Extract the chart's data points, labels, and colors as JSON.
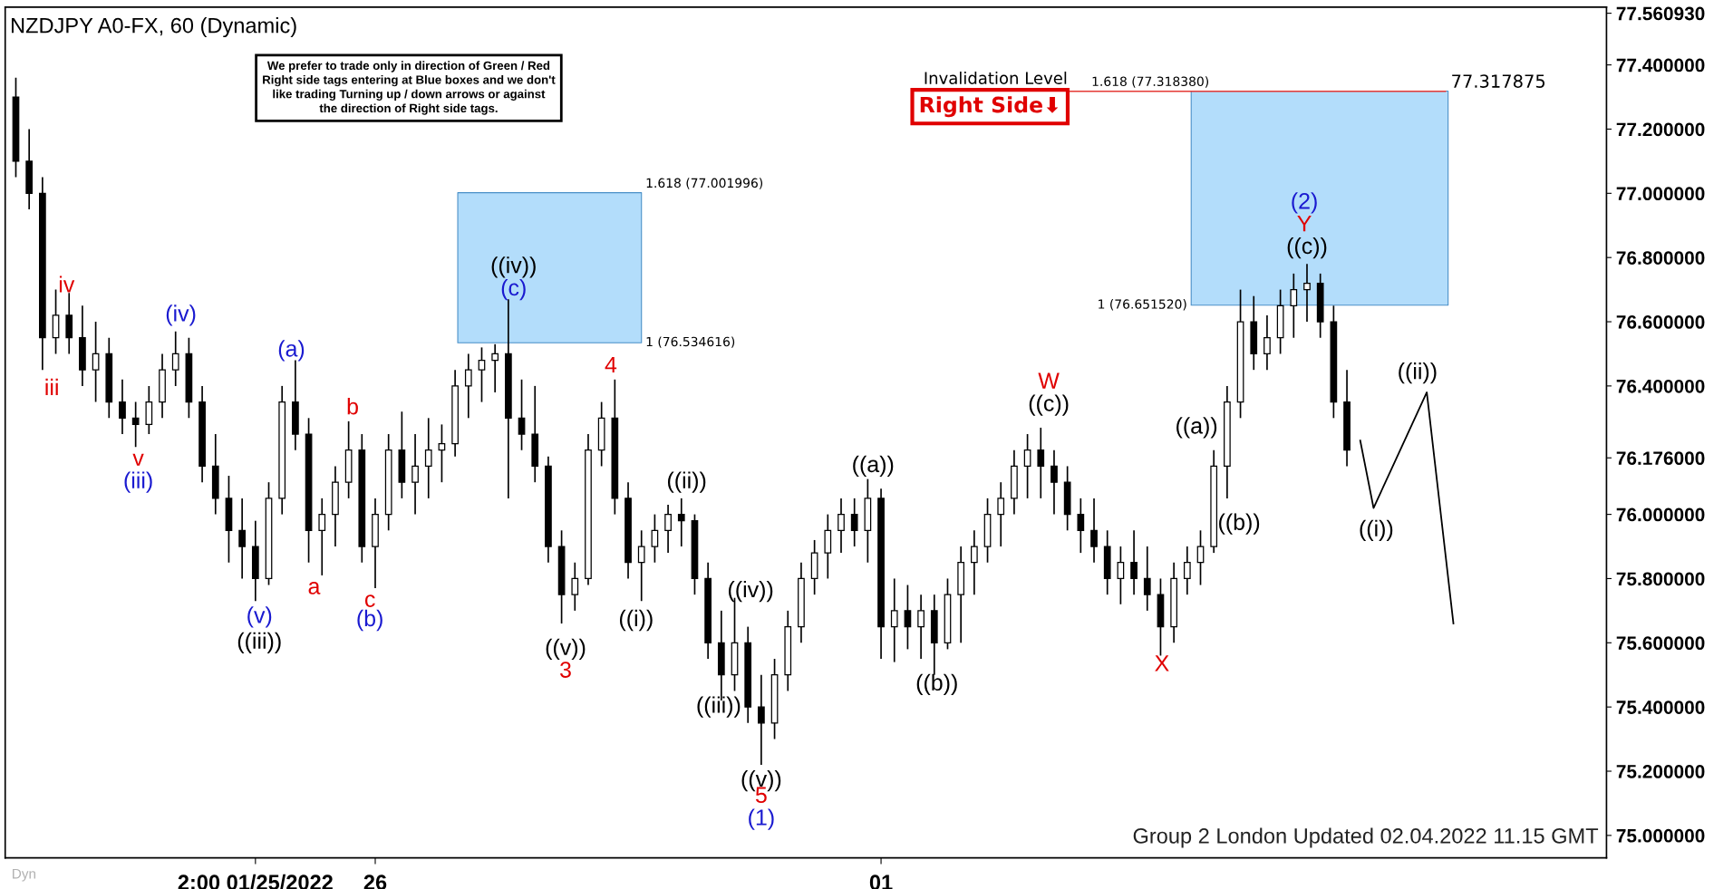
{
  "chart_data": {
    "type": "candlestick",
    "title": "NZDJPY A0-FX, 60 (Dynamic)",
    "color": "#000000",
    "categories": [
      null,
      null,
      null,
      null,
      null,
      null,
      null,
      null,
      null,
      null,
      null,
      null,
      null,
      null,
      null,
      null,
      null,
      null,
      "2:00 01/25/2022",
      null,
      null,
      null,
      null,
      null,
      null,
      null,
      null,
      "26",
      null,
      null,
      null,
      null,
      null,
      null,
      null,
      null,
      null,
      null,
      null,
      null,
      null,
      null,
      null,
      null,
      null,
      null,
      null,
      null,
      null,
      null,
      null,
      null,
      null,
      null,
      null,
      null,
      null,
      null,
      null,
      null,
      null,
      null,
      null,
      null,
      null,
      "01",
      null,
      null,
      null,
      null,
      null,
      null,
      null,
      null,
      null,
      null,
      null,
      null,
      null,
      null,
      null,
      null,
      null,
      null,
      null,
      null,
      null,
      null,
      null,
      null,
      null,
      null,
      null,
      null,
      null,
      null,
      null,
      null,
      null,
      null,
      null,
      null,
      null,
      null,
      null,
      null,
      null,
      null,
      null,
      null,
      null,
      null,
      null,
      null,
      null,
      null,
      null,
      null,
      null,
      null
    ],
    "ohlc": [
      [
        77.3,
        77.36,
        77.05,
        77.1
      ],
      [
        77.1,
        77.2,
        76.95,
        77.0
      ],
      [
        77.0,
        77.05,
        76.45,
        76.55
      ],
      [
        76.55,
        76.7,
        76.5,
        76.62
      ],
      [
        76.62,
        76.69,
        76.5,
        76.55
      ],
      [
        76.55,
        76.65,
        76.4,
        76.45
      ],
      [
        76.45,
        76.6,
        76.35,
        76.5
      ],
      [
        76.5,
        76.55,
        76.3,
        76.35
      ],
      [
        76.35,
        76.42,
        76.25,
        76.3
      ],
      [
        76.3,
        76.35,
        76.21,
        76.28
      ],
      [
        76.28,
        76.4,
        76.25,
        76.35
      ],
      [
        76.35,
        76.5,
        76.3,
        76.45
      ],
      [
        76.45,
        76.57,
        76.4,
        76.5
      ],
      [
        76.5,
        76.55,
        76.3,
        76.35
      ],
      [
        76.35,
        76.4,
        76.1,
        76.15
      ],
      [
        76.15,
        76.25,
        76.0,
        76.05
      ],
      [
        76.05,
        76.12,
        75.85,
        75.95
      ],
      [
        75.95,
        76.05,
        75.8,
        75.9
      ],
      [
        75.9,
        75.98,
        75.73,
        75.8
      ],
      [
        75.8,
        76.1,
        75.78,
        76.05
      ],
      [
        76.05,
        76.4,
        76.0,
        76.35
      ],
      [
        76.35,
        76.48,
        76.2,
        76.25
      ],
      [
        76.25,
        76.3,
        75.85,
        75.95
      ],
      [
        75.95,
        76.05,
        75.81,
        76.0
      ],
      [
        76.0,
        76.15,
        75.9,
        76.1
      ],
      [
        76.1,
        76.29,
        76.05,
        76.2
      ],
      [
        76.2,
        76.25,
        75.85,
        75.9
      ],
      [
        75.9,
        76.05,
        75.77,
        76.0
      ],
      [
        76.0,
        76.25,
        75.95,
        76.2
      ],
      [
        76.2,
        76.32,
        76.05,
        76.1
      ],
      [
        76.1,
        76.25,
        76.0,
        76.15
      ],
      [
        76.15,
        76.3,
        76.05,
        76.2
      ],
      [
        76.2,
        76.28,
        76.1,
        76.22
      ],
      [
        76.22,
        76.45,
        76.18,
        76.4
      ],
      [
        76.4,
        76.5,
        76.3,
        76.45
      ],
      [
        76.45,
        76.52,
        76.35,
        76.48
      ],
      [
        76.48,
        76.53,
        76.38,
        76.5
      ],
      [
        76.5,
        76.67,
        76.05,
        76.3
      ],
      [
        76.3,
        76.42,
        76.2,
        76.25
      ],
      [
        76.25,
        76.4,
        76.1,
        76.15
      ],
      [
        76.15,
        76.18,
        75.85,
        75.9
      ],
      [
        75.9,
        75.95,
        75.66,
        75.75
      ],
      [
        75.75,
        75.85,
        75.7,
        75.8
      ],
      [
        75.8,
        76.25,
        75.78,
        76.2
      ],
      [
        76.2,
        76.35,
        76.15,
        76.3
      ],
      [
        76.3,
        76.42,
        76.0,
        76.05
      ],
      [
        76.05,
        76.1,
        75.8,
        75.85
      ],
      [
        75.85,
        75.95,
        75.73,
        75.9
      ],
      [
        75.9,
        76.0,
        75.85,
        75.95
      ],
      [
        75.95,
        76.03,
        75.88,
        76.0
      ],
      [
        76.0,
        76.05,
        75.9,
        75.98
      ],
      [
        75.98,
        76.0,
        75.75,
        75.8
      ],
      [
        75.8,
        75.85,
        75.55,
        75.6
      ],
      [
        75.6,
        75.7,
        75.42,
        75.5
      ],
      [
        75.5,
        75.74,
        75.45,
        75.6
      ],
      [
        75.6,
        75.65,
        75.35,
        75.4
      ],
      [
        75.4,
        75.5,
        75.22,
        75.35
      ],
      [
        75.35,
        75.55,
        75.3,
        75.5
      ],
      [
        75.5,
        75.7,
        75.45,
        75.65
      ],
      [
        75.65,
        75.85,
        75.6,
        75.8
      ],
      [
        75.8,
        75.92,
        75.75,
        75.88
      ],
      [
        75.88,
        76.0,
        75.8,
        75.95
      ],
      [
        75.95,
        76.05,
        75.88,
        76.0
      ],
      [
        76.0,
        76.05,
        75.9,
        75.95
      ],
      [
        75.95,
        76.11,
        75.85,
        76.05
      ],
      [
        76.05,
        76.08,
        75.55,
        75.65
      ],
      [
        75.65,
        75.8,
        75.54,
        75.7
      ],
      [
        75.7,
        75.78,
        75.58,
        75.65
      ],
      [
        75.65,
        75.75,
        75.55,
        75.7
      ],
      [
        75.7,
        75.75,
        75.5,
        75.6
      ],
      [
        75.6,
        75.8,
        75.58,
        75.75
      ],
      [
        75.75,
        75.9,
        75.6,
        75.85
      ],
      [
        75.85,
        75.95,
        75.75,
        75.9
      ],
      [
        75.9,
        76.05,
        75.85,
        76.0
      ],
      [
        76.0,
        76.1,
        75.9,
        76.05
      ],
      [
        76.05,
        76.2,
        76.0,
        76.15
      ],
      [
        76.15,
        76.25,
        76.05,
        76.2
      ],
      [
        76.2,
        76.27,
        76.05,
        76.15
      ],
      [
        76.15,
        76.2,
        76.0,
        76.1
      ],
      [
        76.1,
        76.15,
        75.95,
        76.0
      ],
      [
        76.0,
        76.05,
        75.88,
        75.95
      ],
      [
        75.95,
        76.05,
        75.85,
        75.9
      ],
      [
        75.9,
        75.95,
        75.75,
        75.8
      ],
      [
        75.8,
        75.9,
        75.72,
        75.85
      ],
      [
        75.85,
        75.95,
        75.75,
        75.8
      ],
      [
        75.8,
        75.9,
        75.7,
        75.75
      ],
      [
        75.75,
        75.8,
        75.56,
        75.65
      ],
      [
        75.65,
        75.85,
        75.6,
        75.8
      ],
      [
        75.8,
        75.9,
        75.75,
        75.85
      ],
      [
        75.85,
        75.95,
        75.78,
        75.9
      ],
      [
        75.9,
        76.2,
        75.88,
        76.15
      ],
      [
        76.15,
        76.4,
        76.05,
        76.35
      ],
      [
        76.35,
        76.7,
        76.3,
        76.6
      ],
      [
        76.6,
        76.68,
        76.45,
        76.5
      ],
      [
        76.5,
        76.62,
        76.45,
        76.55
      ],
      [
        76.55,
        76.7,
        76.5,
        76.65
      ],
      [
        76.65,
        76.75,
        76.55,
        76.7
      ],
      [
        76.7,
        76.78,
        76.6,
        76.72
      ],
      [
        76.72,
        76.75,
        76.55,
        76.6
      ],
      [
        76.6,
        76.65,
        76.3,
        76.35
      ],
      [
        76.35,
        76.45,
        76.15,
        76.2
      ],
      null,
      null,
      null,
      null,
      null,
      null,
      null,
      null,
      null,
      null,
      null,
      null,
      null,
      null,
      null,
      null,
      null,
      null,
      null
    ],
    "series": [
      {
        "type": "line",
        "color": "#000000",
        "values": [
          null,
          null,
          null,
          null,
          null,
          null,
          null,
          null,
          null,
          null,
          null,
          null,
          null,
          null,
          null,
          null,
          null,
          null,
          null,
          null,
          null,
          null,
          null,
          null,
          null,
          null,
          null,
          null,
          null,
          null,
          null,
          null,
          null,
          null,
          null,
          null,
          null,
          null,
          null,
          null,
          null,
          null,
          null,
          null,
          null,
          null,
          null,
          null,
          null,
          null,
          null,
          null,
          null,
          null,
          null,
          null,
          null,
          null,
          null,
          null,
          null,
          null,
          null,
          null,
          null,
          null,
          null,
          null,
          null,
          null,
          null,
          null,
          null,
          null,
          null,
          null,
          null,
          null,
          null,
          null,
          null,
          null,
          null,
          null,
          null,
          null,
          null,
          null,
          null,
          null,
          null,
          null,
          null,
          null,
          null,
          null,
          null,
          null,
          null,
          null,
          null,
          76.23,
          76.02,
          null,
          null,
          null,
          76.38,
          null,
          75.66,
          null,
          null,
          null,
          null,
          null,
          null,
          null,
          null,
          null,
          null,
          null
        ]
      }
    ],
    "ylim": [
      74.93,
      77.58
    ],
    "yticks": [
      {
        "value": 75.0,
        "label": "75.000000"
      },
      {
        "value": 75.2,
        "label": "75.200000"
      },
      {
        "value": 75.4,
        "label": "75.400000"
      },
      {
        "value": 75.6,
        "label": "75.600000"
      },
      {
        "value": 75.8,
        "label": "75.800000"
      },
      {
        "value": 76.0,
        "label": "76.000000"
      },
      {
        "value": 76.176,
        "label": "76.176000"
      },
      {
        "value": 76.4,
        "label": "76.400000"
      },
      {
        "value": 76.6,
        "label": "76.600000"
      },
      {
        "value": 76.8,
        "label": "76.800000"
      },
      {
        "value": 77.0,
        "label": "77.000000"
      },
      {
        "value": 77.2,
        "label": "77.200000"
      },
      {
        "value": 77.4,
        "label": "77.400000"
      },
      {
        "value": 77.56093,
        "label": "77.560930"
      }
    ],
    "bands": [
      {
        "axis": "y",
        "from": 76.534616,
        "to": 77.001996,
        "label": "1.618 (77.001996)",
        "color": "#b3ddfb"
      },
      {
        "axis": "y",
        "from": 76.65152,
        "to": 77.31838,
        "label": "1.618 (77.318380)",
        "color": "#b3ddfb"
      }
    ],
    "ref_lines": [
      {
        "axis": "y",
        "value": 77.317875,
        "label": "77.317875",
        "color": "#e53935"
      }
    ],
    "annotations": [
      "We prefer to trade only in direction of Green / Red\nRight side tags entering at Blue boxes and we don't\nlike trading Turning up / down arrows or against\nthe direction of Right side tags.",
      "Right Side⬇",
      "Dyn",
      "Group 2 London Updated 02.04.2022 11.15 GMT",
      "1 (76.534616)",
      "1 (76.651520)",
      {
        "text": "Invalidation Level",
        "y": 77.317875
      },
      "iv",
      "iii",
      "v",
      "(iii)",
      "(iv)",
      "(v)",
      "((iii))",
      "(a)",
      "a",
      "b",
      "c",
      "(b)",
      "((iv))",
      "(c)",
      "((v))",
      "3",
      "4",
      "((i))",
      "((ii))",
      "((iii))",
      "((iv))",
      "((v))",
      "5",
      "(1)",
      "((a))",
      "((b))",
      "W",
      "((c))",
      "X",
      "((a))",
      "((b))",
      "(2)",
      "Y",
      "((c))",
      "((i))",
      "((ii))"
    ]
  }
}
